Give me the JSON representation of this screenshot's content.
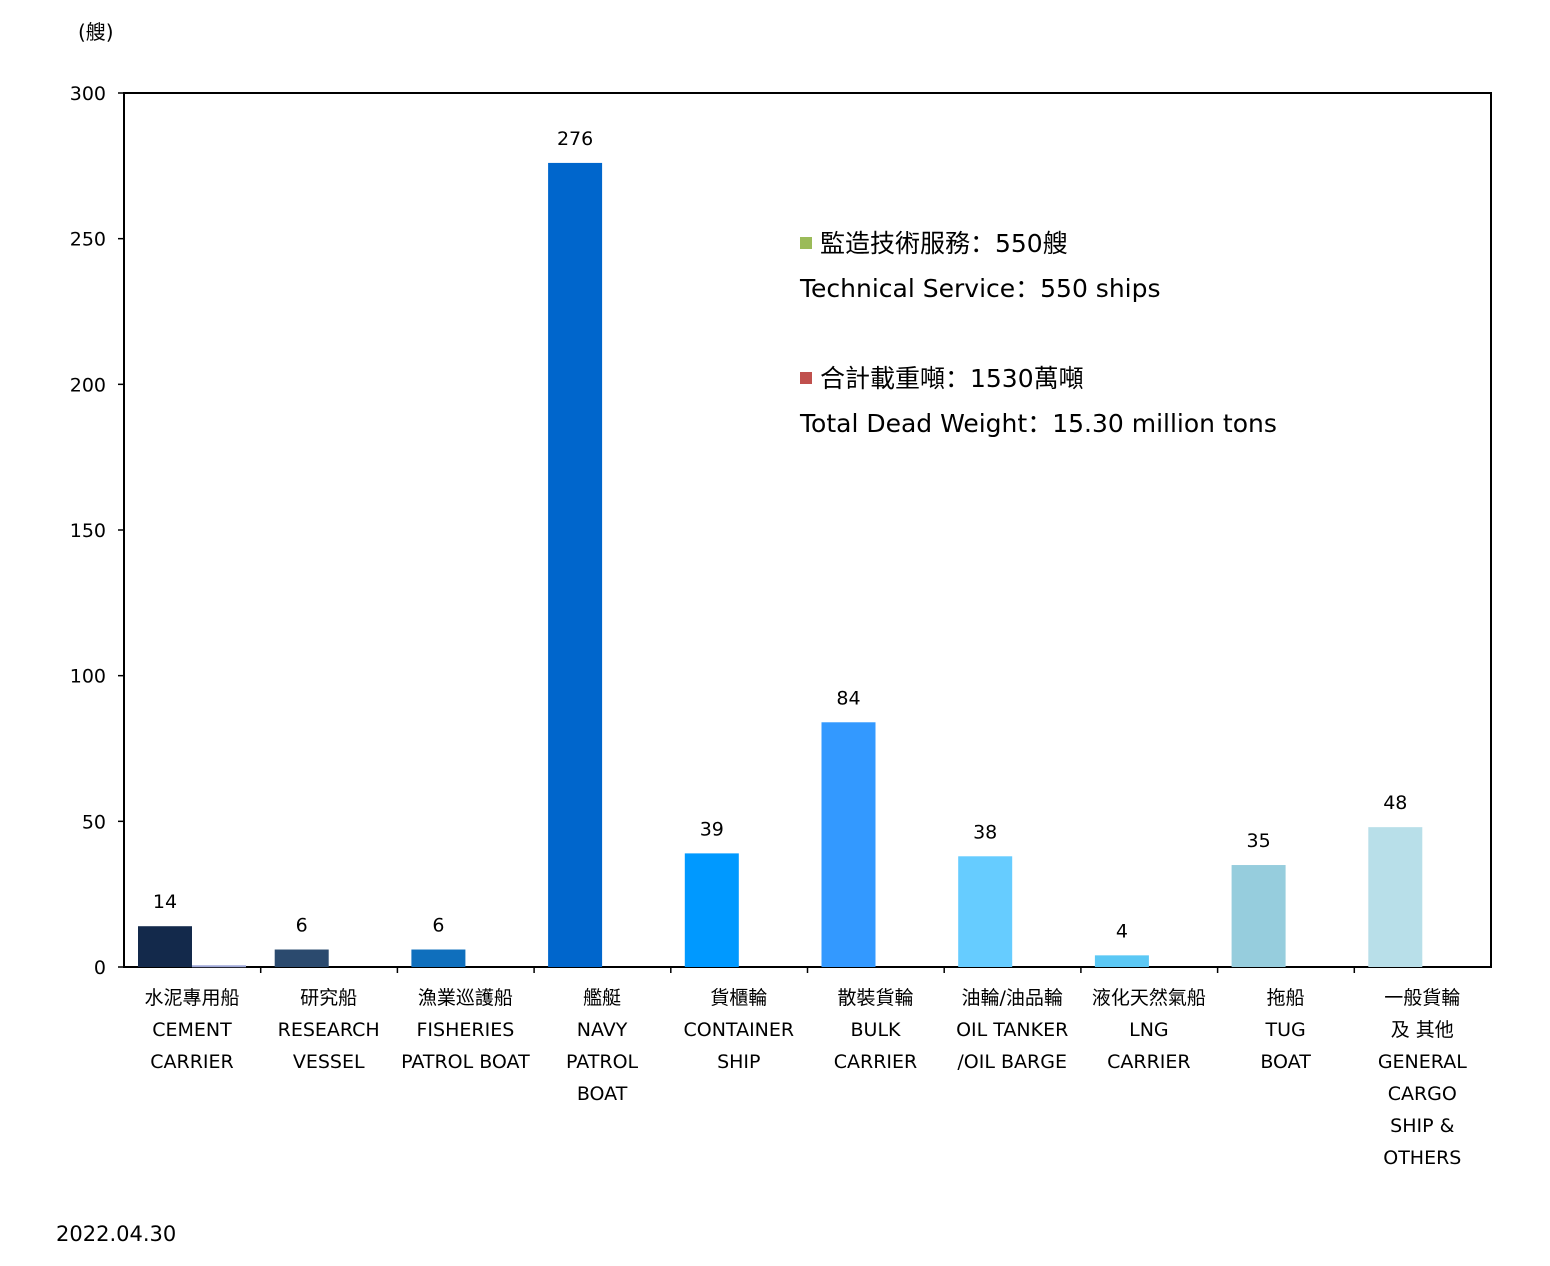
{
  "unit_label": "(艘)",
  "date": "2022.04.30",
  "legend": [
    {
      "zh": "監造技術服務：550艘",
      "en": "Technical Service：550 ships",
      "color": "#9bbb59"
    },
    {
      "zh": "合計載重噸：1530萬噸",
      "en": "Total Dead Weight：15.30 million tons",
      "color": "#c0504d"
    }
  ],
  "chart_data": {
    "type": "bar",
    "ylim": [
      0,
      300
    ],
    "yticks": [
      0,
      50,
      100,
      150,
      200,
      250,
      300
    ],
    "categories": [
      {
        "zh": "水泥專用船",
        "en": [
          "CEMENT",
          "CARRIER"
        ]
      },
      {
        "zh": "研究船",
        "en": [
          "RESEARCH",
          "VESSEL"
        ]
      },
      {
        "zh": "漁業巡護船",
        "en": [
          "FISHERIES",
          "PATROL BOAT"
        ]
      },
      {
        "zh": "艦艇",
        "en": [
          "NAVY",
          "PATROL",
          "BOAT"
        ]
      },
      {
        "zh": "貨櫃輪",
        "en": [
          "CONTAINER",
          "SHIP"
        ]
      },
      {
        "zh": "散裝貨輪",
        "en": [
          "BULK",
          "CARRIER"
        ]
      },
      {
        "zh": "油輪/油品輪",
        "en": [
          "OIL TANKER",
          "/OIL BARGE"
        ]
      },
      {
        "zh": "液化天然氣船",
        "en": [
          "LNG",
          "CARRIER"
        ]
      },
      {
        "zh": "拖船",
        "en": [
          "TUG",
          "BOAT"
        ]
      },
      {
        "zh": "一般貨輪",
        "en": [
          "及 其他",
          "GENERAL",
          "CARGO",
          "SHIP &",
          "OTHERS"
        ]
      }
    ],
    "values": [
      14,
      6,
      6,
      276,
      39,
      84,
      38,
      4,
      35,
      48
    ],
    "value_labels": [
      "14",
      "6",
      "6",
      "276",
      "39",
      "84",
      "38",
      "4",
      "35",
      "48"
    ],
    "colors": [
      "#13294b",
      "#2b4a6e",
      "#0f6fbd",
      "#0066cc",
      "#0099ff",
      "#3399ff",
      "#66ccff",
      "#5bc8f5",
      "#96cddd",
      "#b8dfe9"
    ],
    "secondary_values": [
      0.6,
      0,
      0,
      0,
      0,
      0,
      0,
      0,
      0,
      0
    ],
    "secondary_color": "#9fa8d8"
  }
}
